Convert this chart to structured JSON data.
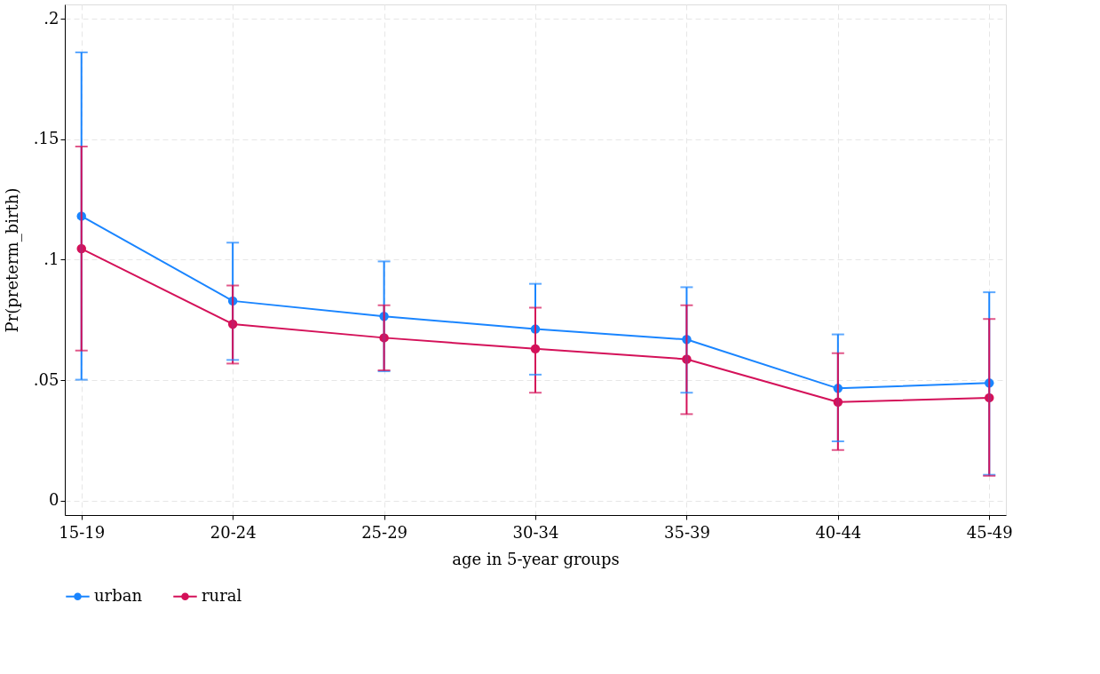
{
  "chart_data": {
    "type": "line",
    "xlabel": "age in 5-year groups",
    "ylabel": "Pr(preterm_birth)",
    "categories": [
      "15-19",
      "20-24",
      "25-29",
      "30-34",
      "35-39",
      "40-44",
      "45-49"
    ],
    "ylim": [
      -0.006,
      0.206
    ],
    "yticks": [
      {
        "value": 0,
        "label": "0"
      },
      {
        "value": 0.05,
        "label": ".05"
      },
      {
        "value": 0.1,
        "label": ".1"
      },
      {
        "value": 0.15,
        "label": ".15"
      },
      {
        "value": 0.2,
        "label": ".2"
      }
    ],
    "series": [
      {
        "name": "urban",
        "color": "#1a85ff",
        "values": [
          0.1181,
          0.0829,
          0.0765,
          0.0712,
          0.0669,
          0.0466,
          0.0488
        ],
        "errors": [
          [
            0.0502,
            0.1861
          ],
          [
            0.0584,
            0.1071
          ],
          [
            0.0537,
            0.0993
          ],
          [
            0.0523,
            0.09
          ],
          [
            0.0448,
            0.0886
          ],
          [
            0.0246,
            0.069
          ],
          [
            0.0107,
            0.0865
          ]
        ]
      },
      {
        "name": "rural",
        "color": "#d41159",
        "values": [
          0.1046,
          0.0733,
          0.0676,
          0.063,
          0.0587,
          0.0409,
          0.0427
        ],
        "errors": [
          [
            0.0623,
            0.147
          ],
          [
            0.0569,
            0.0893
          ],
          [
            0.0541,
            0.0811
          ],
          [
            0.0448,
            0.0801
          ],
          [
            0.0359,
            0.0811
          ],
          [
            0.021,
            0.0612
          ],
          [
            0.0103,
            0.0754
          ]
        ]
      }
    ],
    "grid": true,
    "legend": "bottom",
    "marker": "circle",
    "line_style": "solid"
  }
}
